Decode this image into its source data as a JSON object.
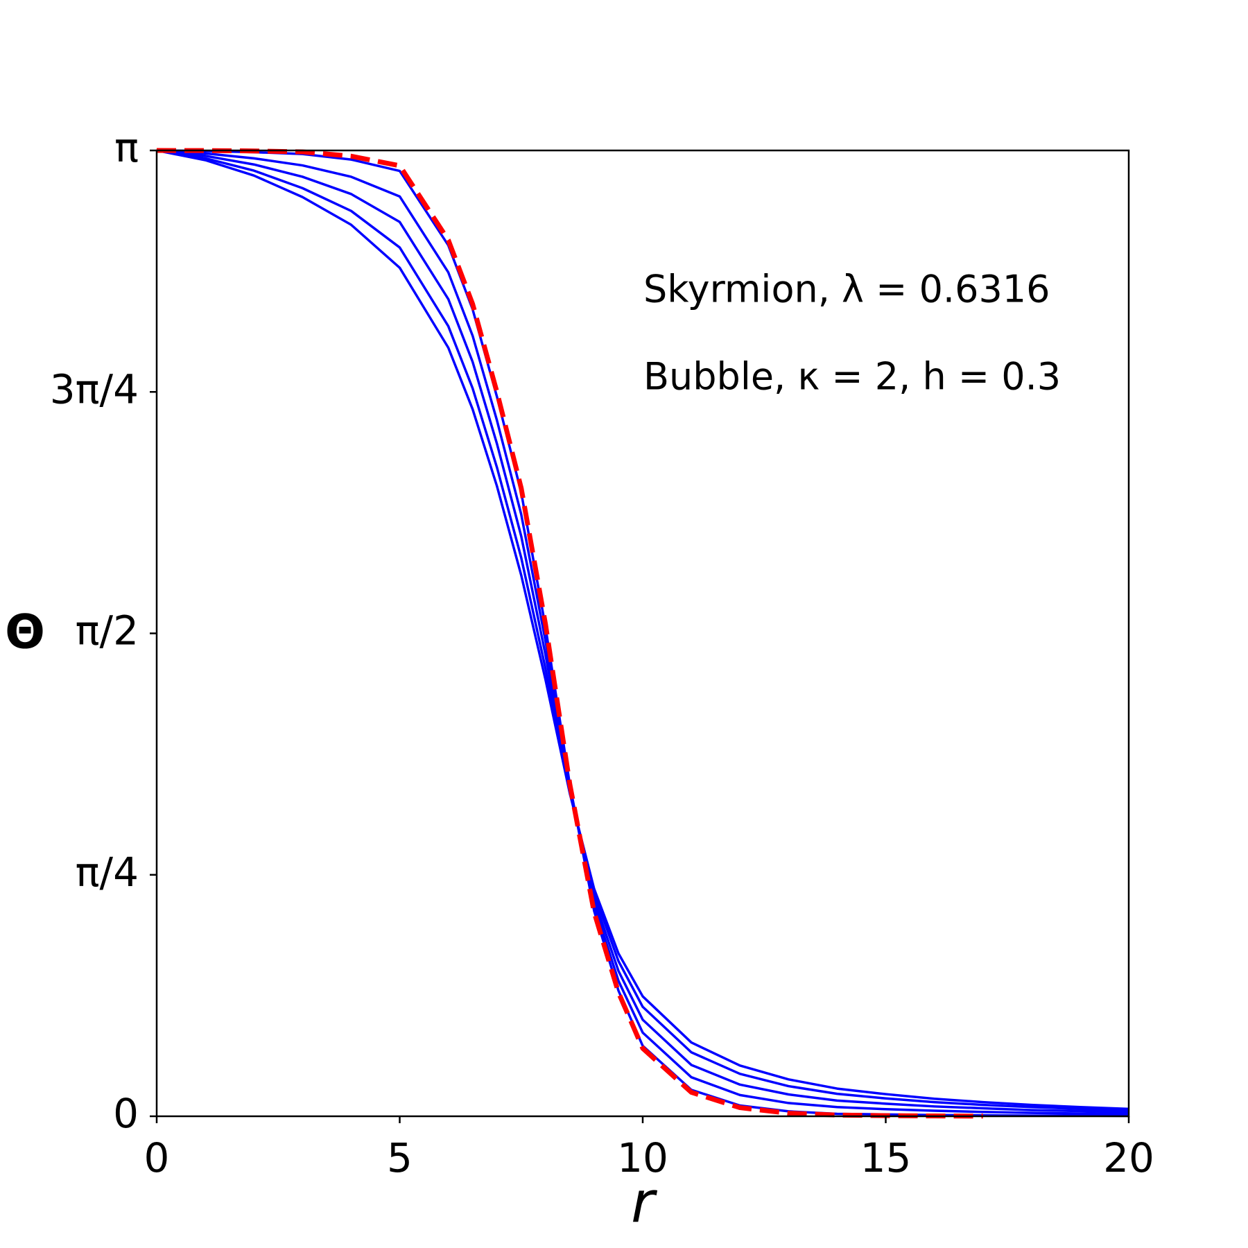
{
  "chart_data": {
    "type": "line",
    "xlabel": "r",
    "ylabel": "Θ",
    "x": [
      0,
      1,
      2,
      3,
      4,
      5,
      6,
      6.5,
      7,
      7.5,
      8,
      8.5,
      9,
      9.5,
      10,
      11,
      12,
      13,
      14,
      15,
      16,
      17,
      18,
      19,
      20
    ],
    "series": [
      {
        "color": "#0000ff",
        "dash": false,
        "values": [
          3.1416,
          3.1397,
          3.136,
          3.13,
          3.112,
          3.075,
          2.833,
          2.625,
          2.341,
          2.029,
          1.591,
          1.079,
          0.668,
          0.409,
          0.229,
          0.086,
          0.035,
          0.016,
          0.008,
          0.006,
          0.004,
          0.003,
          0.002,
          0.002,
          0.001
        ]
      },
      {
        "color": "#0000ff",
        "dash": false,
        "values": [
          3.1416,
          3.132,
          3.116,
          3.093,
          3.056,
          2.992,
          2.745,
          2.539,
          2.264,
          1.958,
          1.546,
          1.071,
          0.687,
          0.441,
          0.272,
          0.127,
          0.069,
          0.043,
          0.03,
          0.023,
          0.018,
          0.014,
          0.011,
          0.009,
          0.007
        ]
      },
      {
        "color": "#0000ff",
        "dash": false,
        "values": [
          3.1416,
          3.124,
          3.096,
          3.056,
          3.0,
          2.909,
          2.658,
          2.454,
          2.188,
          1.887,
          1.501,
          1.064,
          0.706,
          0.473,
          0.314,
          0.167,
          0.103,
          0.071,
          0.051,
          0.041,
          0.032,
          0.026,
          0.02,
          0.017,
          0.013
        ]
      },
      {
        "color": "#0000ff",
        "dash": false,
        "values": [
          3.1416,
          3.116,
          3.076,
          3.019,
          2.945,
          2.826,
          2.57,
          2.368,
          2.111,
          1.817,
          1.456,
          1.056,
          0.725,
          0.505,
          0.356,
          0.208,
          0.138,
          0.098,
          0.073,
          0.058,
          0.046,
          0.037,
          0.03,
          0.024,
          0.019
        ]
      },
      {
        "color": "#0000ff",
        "dash": false,
        "values": [
          3.1416,
          3.11,
          3.06,
          2.99,
          2.9,
          2.76,
          2.5,
          2.3,
          2.05,
          1.76,
          1.42,
          1.05,
          0.74,
          0.53,
          0.39,
          0.24,
          0.165,
          0.12,
          0.09,
          0.072,
          0.057,
          0.046,
          0.037,
          0.03,
          0.024
        ]
      },
      {
        "color": "#ff0000",
        "dash": true,
        "values": [
          3.1416,
          3.1412,
          3.14,
          3.137,
          3.123,
          3.092,
          2.85,
          2.642,
          2.356,
          2.043,
          1.6,
          1.08,
          0.664,
          0.403,
          0.221,
          0.078,
          0.028,
          0.01,
          0.004,
          0.002,
          0.001,
          0.0005,
          null,
          null,
          null
        ]
      }
    ],
    "annotations": [
      {
        "text": "Skyrmion, λ = 0.6316",
        "color": "#ff0000"
      },
      {
        "text": "Bubble, κ = 2, h = 0.3",
        "color": "#0000ff"
      }
    ],
    "xlim": [
      0,
      20
    ],
    "xticks": [
      0,
      5,
      10,
      15,
      20
    ],
    "ylim": [
      0,
      3.1416
    ],
    "yticks": [
      0,
      {
        "value": 0.7854,
        "label": "π/4"
      },
      {
        "value": 1.5708,
        "label": "π/2"
      },
      {
        "value": 2.3562,
        "label": "3π/4"
      },
      {
        "value": 3.1416,
        "label": "π"
      }
    ],
    "grid": false
  }
}
